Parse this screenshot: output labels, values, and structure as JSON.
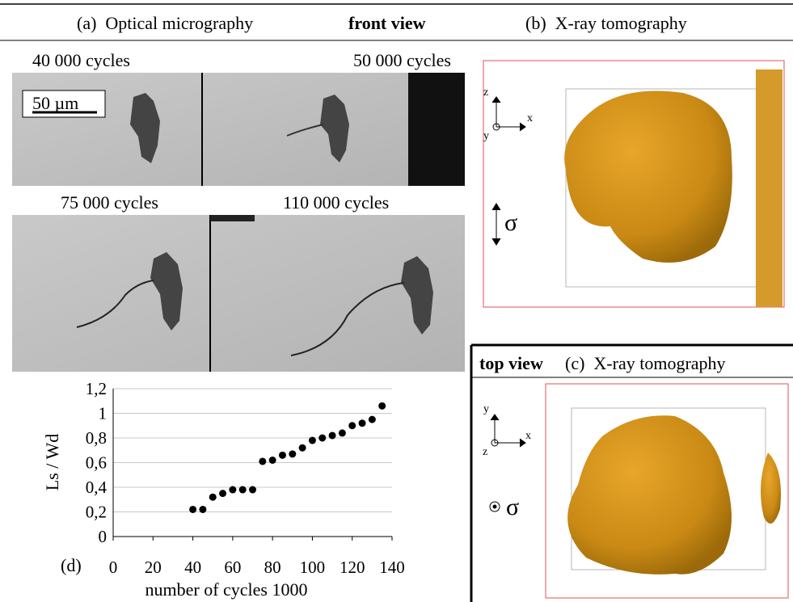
{
  "header": {
    "panel_a": "(a)  Optical micrography",
    "front_view": "front view",
    "panel_b": "(b)  X-ray tomography"
  },
  "micrographs": {
    "labels": [
      "40 000 cycles",
      "50 000 cycles",
      "75 000 cycles",
      "110 000 cycles"
    ],
    "scale_bar": "50 µm"
  },
  "axes_front": {
    "z": "z",
    "x": "x",
    "y": "y",
    "sigma": "σ"
  },
  "panel_c": {
    "top_view": "top view",
    "title": "(c)  X-ray tomography"
  },
  "axes_top": {
    "y": "y",
    "z": "z",
    "x": "x",
    "sigma": "σ"
  },
  "chart_data": {
    "type": "scatter",
    "panel_label": "(d)",
    "x_label": "number of cycles 1000",
    "y_label": "Ls / Wd",
    "x": [
      40,
      45,
      50,
      55,
      60,
      65,
      70,
      75,
      80,
      85,
      90,
      95,
      100,
      105,
      110,
      115,
      120,
      125,
      130,
      135
    ],
    "values": [
      0.22,
      0.22,
      0.32,
      0.35,
      0.38,
      0.38,
      0.38,
      0.61,
      0.62,
      0.66,
      0.67,
      0.72,
      0.78,
      0.8,
      0.82,
      0.84,
      0.9,
      0.92,
      0.95,
      1.06
    ],
    "color": "#000000",
    "xlim": [
      0,
      140
    ],
    "xticks": [
      0,
      20,
      40,
      60,
      80,
      100,
      120,
      140
    ],
    "ylim": [
      0,
      1.2
    ],
    "yticks": [
      0,
      {
        "value": 0.2,
        "label": "0,2"
      },
      {
        "value": 0.4,
        "label": "0,4"
      },
      {
        "value": 0.6,
        "label": "0,6"
      },
      {
        "value": 0.8,
        "label": "0,8"
      },
      1,
      {
        "value": 1.2,
        "label": "1,2"
      }
    ],
    "grid": true
  }
}
